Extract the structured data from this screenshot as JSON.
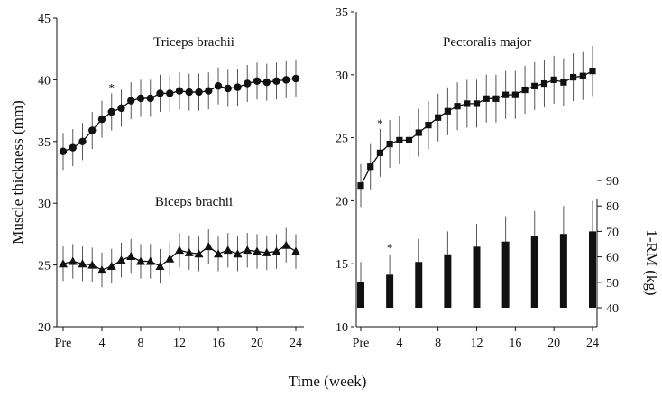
{
  "chart_data": [
    {
      "id": "left",
      "type": "line",
      "x": [
        "Pre",
        1,
        2,
        3,
        4,
        5,
        6,
        7,
        8,
        9,
        10,
        11,
        12,
        13,
        14,
        15,
        16,
        17,
        18,
        19,
        20,
        21,
        22,
        23,
        24
      ],
      "xticks": [
        "Pre",
        "4",
        "8",
        "12",
        "16",
        "20",
        "24"
      ],
      "yticks": [
        "20",
        "25",
        "30",
        "35",
        "40",
        "45"
      ],
      "ylim": [
        20,
        45
      ],
      "ylabel": "Muscle thickness (mm)",
      "series": [
        {
          "name": "Triceps brachii",
          "marker": "circle",
          "values": [
            34.2,
            34.5,
            35.0,
            35.9,
            36.8,
            37.4,
            37.7,
            38.3,
            38.5,
            38.5,
            38.9,
            38.9,
            39.1,
            39.0,
            39.0,
            39.1,
            39.5,
            39.3,
            39.4,
            39.7,
            39.9,
            39.8,
            39.9,
            40.0,
            40.1
          ],
          "errors": [
            1.5,
            1.5,
            1.5,
            1.5,
            1.5,
            1.5,
            1.5,
            1.5,
            1.5,
            1.5,
            1.5,
            1.5,
            1.5,
            1.5,
            1.5,
            1.5,
            1.5,
            1.5,
            1.5,
            1.5,
            1.5,
            1.5,
            1.5,
            1.5,
            1.5
          ],
          "annotations": [
            {
              "index": 5,
              "text": "*"
            }
          ]
        },
        {
          "name": "Biceps brachii",
          "marker": "triangle",
          "values": [
            25.1,
            25.3,
            25.1,
            25.0,
            24.6,
            24.9,
            25.4,
            25.7,
            25.3,
            25.3,
            24.9,
            25.5,
            26.2,
            26.0,
            25.9,
            26.5,
            25.9,
            26.2,
            25.9,
            26.2,
            26.1,
            26.0,
            26.1,
            26.6,
            26.1
          ],
          "errors": [
            1.4,
            1.4,
            1.4,
            1.4,
            1.4,
            1.4,
            1.4,
            1.4,
            1.4,
            1.4,
            1.4,
            1.4,
            1.4,
            1.4,
            1.4,
            1.4,
            1.4,
            1.4,
            1.4,
            1.4,
            1.4,
            1.4,
            1.4,
            1.4,
            1.4
          ]
        }
      ]
    },
    {
      "id": "right",
      "type": "line",
      "x": [
        "Pre",
        1,
        2,
        3,
        4,
        5,
        6,
        7,
        8,
        9,
        10,
        11,
        12,
        13,
        14,
        15,
        16,
        17,
        18,
        19,
        20,
        21,
        22,
        23,
        24
      ],
      "xticks": [
        "Pre",
        "4",
        "8",
        "12",
        "16",
        "20",
        "24"
      ],
      "yticks": [
        "10",
        "15",
        "20",
        "25",
        "30",
        "35"
      ],
      "ylim": [
        10,
        35
      ],
      "series": [
        {
          "name": "Pectoralis major",
          "marker": "square",
          "values": [
            21.2,
            22.7,
            23.8,
            24.5,
            24.8,
            24.8,
            25.4,
            26.0,
            26.6,
            27.1,
            27.5,
            27.7,
            27.7,
            28.1,
            28.1,
            28.4,
            28.4,
            28.8,
            29.1,
            29.3,
            29.6,
            29.4,
            29.8,
            29.9,
            30.3
          ],
          "errors": [
            1.7,
            1.8,
            1.9,
            1.9,
            1.9,
            1.9,
            1.9,
            1.9,
            1.9,
            1.9,
            1.9,
            1.9,
            1.9,
            1.9,
            1.9,
            1.9,
            1.9,
            1.9,
            1.9,
            1.9,
            1.9,
            1.9,
            1.9,
            1.9,
            2.0
          ],
          "annotations": [
            {
              "index": 2,
              "text": "*"
            }
          ]
        }
      ]
    },
    {
      "id": "right-bars",
      "type": "bar",
      "series_name": "1-RM",
      "x": [
        "Pre",
        3,
        6,
        9,
        12,
        15,
        18,
        21,
        24
      ],
      "values": [
        50,
        53,
        58,
        61,
        64,
        66,
        68,
        69,
        70
      ],
      "errors": [
        8,
        8,
        9,
        9,
        9,
        10,
        10,
        11,
        12
      ],
      "annotations": [
        {
          "index": 1,
          "text": "*"
        }
      ],
      "ylim": [
        40,
        90
      ],
      "yticks": [
        "40",
        "50",
        "60",
        "70",
        "80",
        "90"
      ],
      "ylabel": "1-RM (kg)"
    }
  ],
  "xlabel": "Time (week)"
}
